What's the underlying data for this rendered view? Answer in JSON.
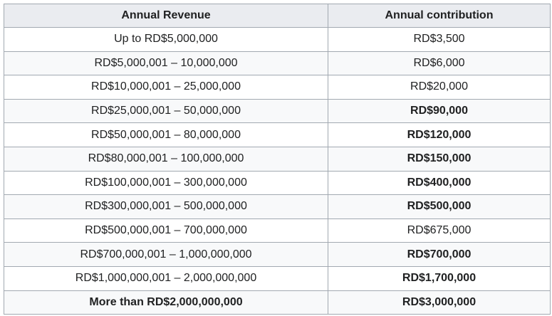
{
  "table": {
    "headers": [
      "Annual Revenue",
      "Annual contribution"
    ],
    "rows": [
      {
        "revenue": "Up to RD$5,000,000",
        "contribution": "RD$3,500",
        "bold_revenue": false,
        "bold_contribution": false
      },
      {
        "revenue": "RD$5,000,001 – 10,000,000",
        "contribution": "RD$6,000",
        "bold_revenue": false,
        "bold_contribution": false
      },
      {
        "revenue": "RD$10,000,001 – 25,000,000",
        "contribution": "RD$20,000",
        "bold_revenue": false,
        "bold_contribution": false
      },
      {
        "revenue": "RD$25,000,001 – 50,000,000",
        "contribution": "RD$90,000",
        "bold_revenue": false,
        "bold_contribution": true
      },
      {
        "revenue": "RD$50,000,001 – 80,000,000",
        "contribution": "RD$120,000",
        "bold_revenue": false,
        "bold_contribution": true
      },
      {
        "revenue": "RD$80,000,001 – 100,000,000",
        "contribution": "RD$150,000",
        "bold_revenue": false,
        "bold_contribution": true
      },
      {
        "revenue": "RD$100,000,001 – 300,000,000",
        "contribution": "RD$400,000",
        "bold_revenue": false,
        "bold_contribution": true
      },
      {
        "revenue": "RD$300,000,001 – 500,000,000",
        "contribution": "RD$500,000",
        "bold_revenue": false,
        "bold_contribution": true
      },
      {
        "revenue": "RD$500,000,001 – 700,000,000",
        "contribution": "RD$675,000",
        "bold_revenue": false,
        "bold_contribution": false
      },
      {
        "revenue": "RD$700,000,001 – 1,000,000,000",
        "contribution": "RD$700,000",
        "bold_revenue": false,
        "bold_contribution": true
      },
      {
        "revenue": "RD$1,000,000,001 – 2,000,000,000",
        "contribution": "RD$1,700,000",
        "bold_revenue": false,
        "bold_contribution": true
      },
      {
        "revenue": "More than RD$2,000,000,000",
        "contribution": "RD$3,000,000",
        "bold_revenue": true,
        "bold_contribution": true
      }
    ]
  }
}
